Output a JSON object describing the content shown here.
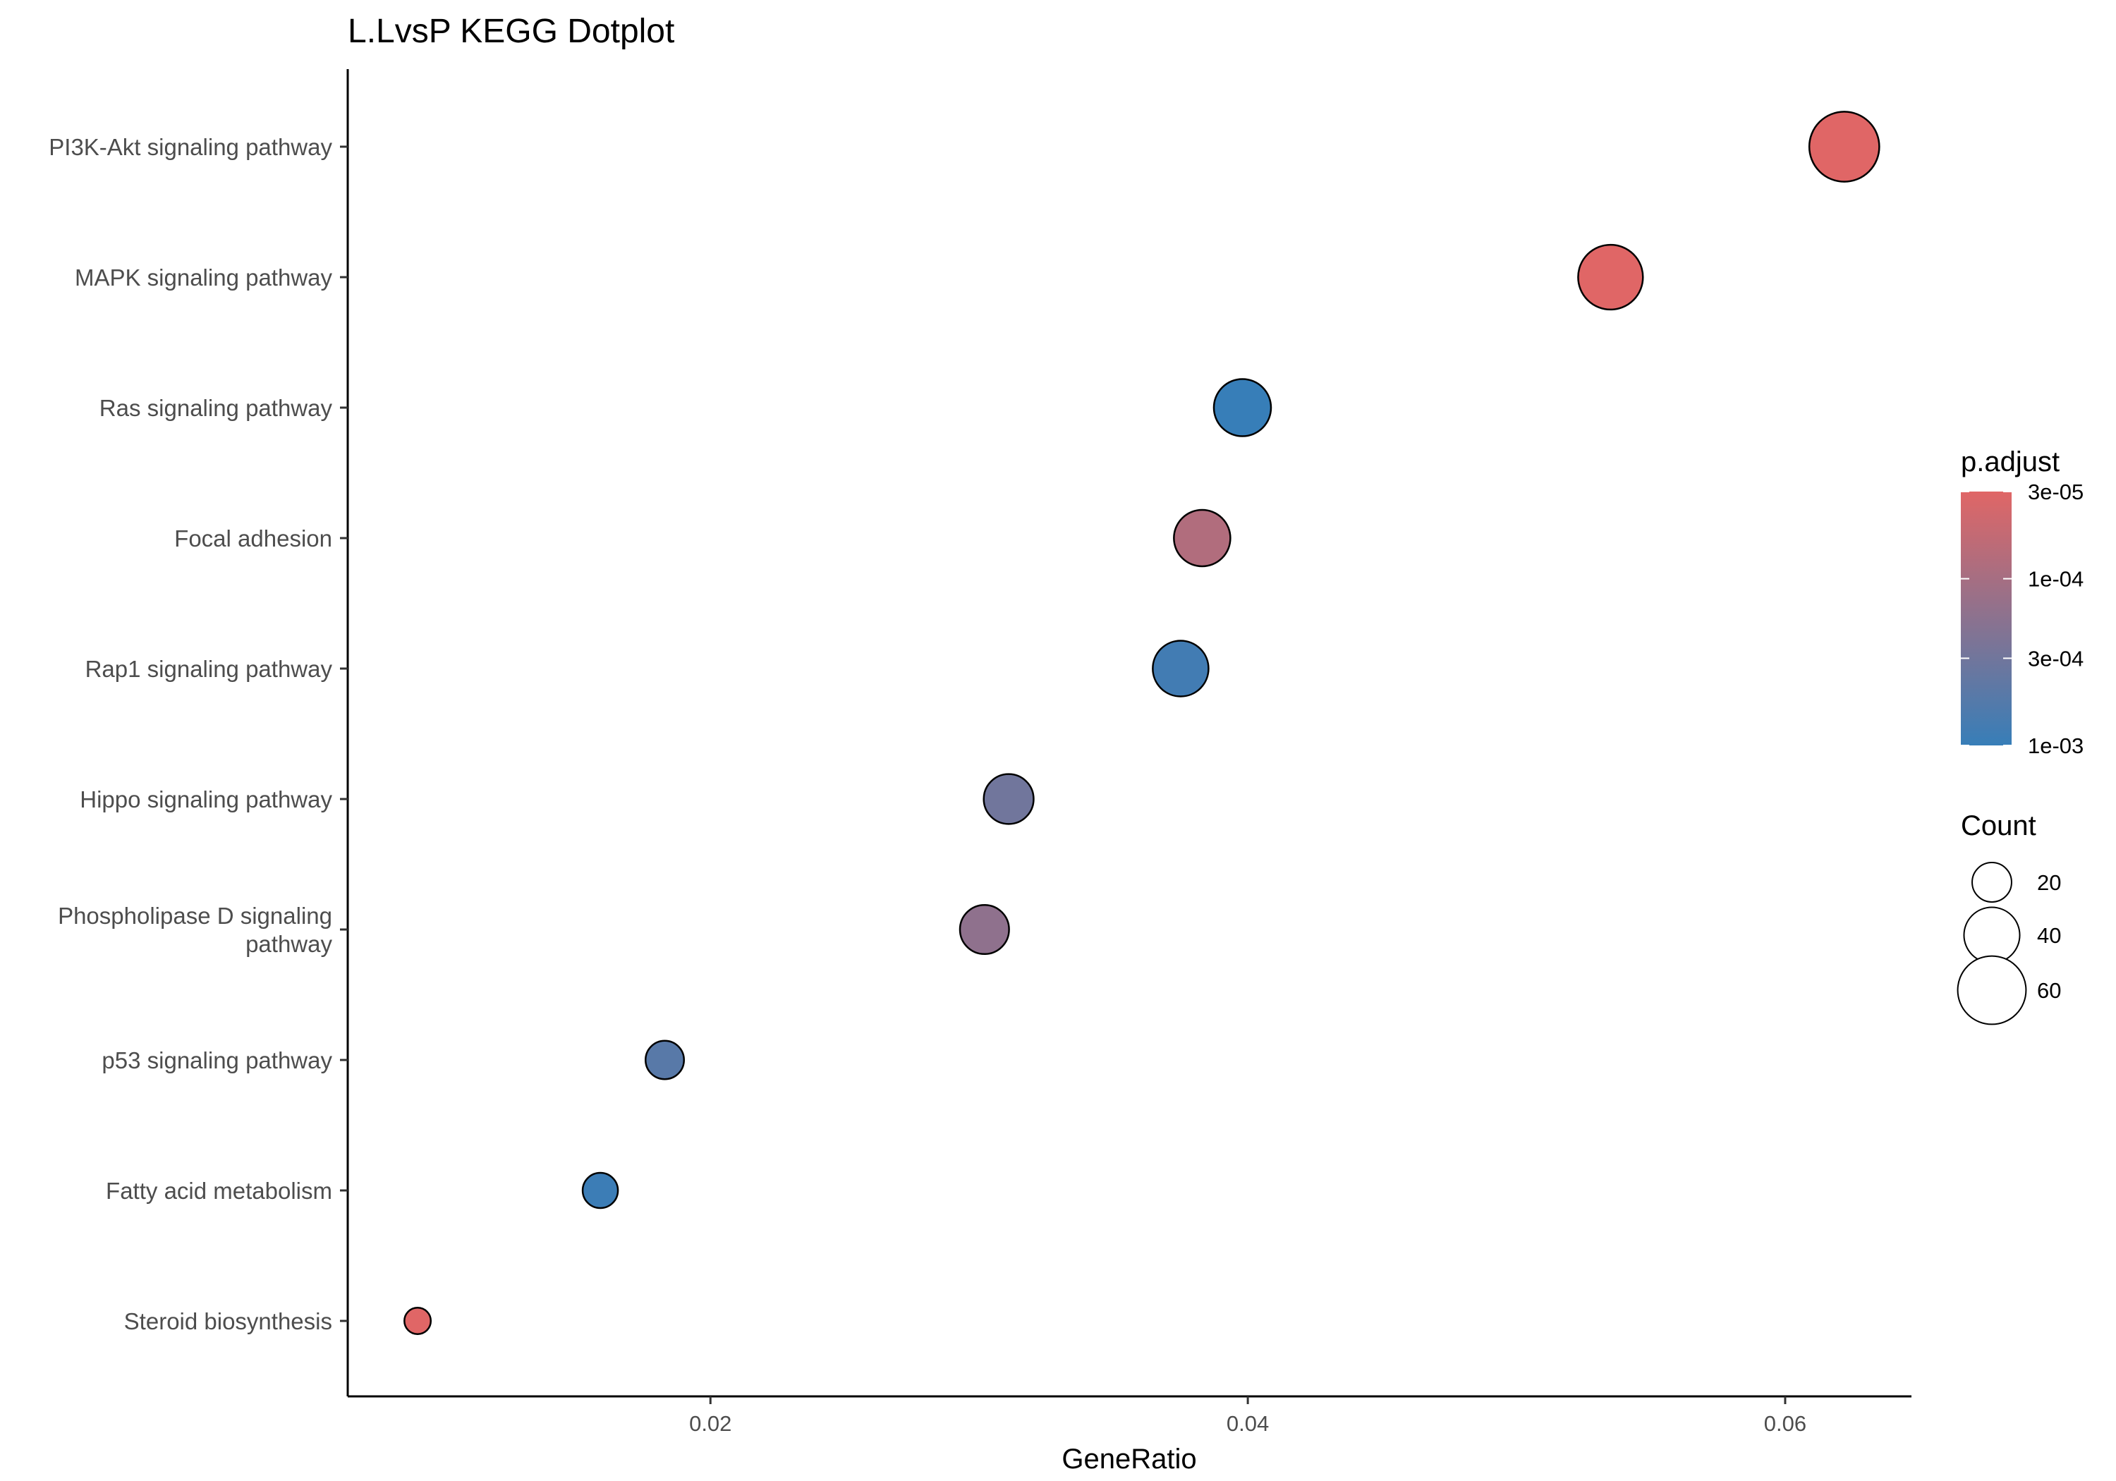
{
  "chart_data": {
    "type": "scatter",
    "title": "L.LvsP KEGG Dotplot",
    "xlabel": "GeneRatio",
    "ylabel": "",
    "xlim": [
      0.0065,
      0.0647
    ],
    "x_ticks": [
      {
        "value": 0.02,
        "label": "0.02"
      },
      {
        "value": 0.04,
        "label": "0.04"
      },
      {
        "value": 0.06,
        "label": "0.06"
      }
    ],
    "grid": false,
    "categories": [
      [
        "PI3K-Akt signaling pathway"
      ],
      [
        "MAPK signaling pathway"
      ],
      [
        "Ras signaling pathway"
      ],
      [
        "Focal adhesion"
      ],
      [
        "Rap1 signaling pathway"
      ],
      [
        "Hippo signaling pathway"
      ],
      [
        "Phospholipase D signaling",
        "pathway"
      ],
      [
        "p53 signaling pathway"
      ],
      [
        "Fatty acid metabolism"
      ],
      [
        "Steroid biosynthesis"
      ]
    ],
    "points": [
      {
        "gene_ratio": 0.0622,
        "count": 63,
        "p_adjust": 3e-05
      },
      {
        "gene_ratio": 0.0535,
        "count": 54,
        "p_adjust": 3e-05
      },
      {
        "gene_ratio": 0.0398,
        "count": 42,
        "p_adjust": 0.001
      },
      {
        "gene_ratio": 0.0383,
        "count": 41,
        "p_adjust": 8e-05
      },
      {
        "gene_ratio": 0.0375,
        "count": 40,
        "p_adjust": 0.0008
      },
      {
        "gene_ratio": 0.0311,
        "count": 32,
        "p_adjust": 0.0003
      },
      {
        "gene_ratio": 0.0302,
        "count": 31,
        "p_adjust": 0.00016
      },
      {
        "gene_ratio": 0.0183,
        "count": 19,
        "p_adjust": 0.0005
      },
      {
        "gene_ratio": 0.0159,
        "count": 16,
        "p_adjust": 0.0009
      },
      {
        "gene_ratio": 0.0091,
        "count": 9,
        "p_adjust": 3e-05
      }
    ],
    "color_legend": {
      "title": "p.adjust",
      "scale": "log",
      "low_value": 0.001,
      "high_value": 3e-05,
      "low_color": "#377eb8",
      "high_color": "#e06666",
      "ticks": [
        {
          "value": 3e-05,
          "label": "3e-05"
        },
        {
          "value": 0.0001,
          "label": "1e-04"
        },
        {
          "value": 0.0003,
          "label": "3e-04"
        },
        {
          "value": 0.001,
          "label": "1e-03"
        }
      ]
    },
    "size_legend": {
      "title": "Count",
      "entries": [
        {
          "value": 20,
          "label": "20"
        },
        {
          "value": 40,
          "label": "40"
        },
        {
          "value": 60,
          "label": "60"
        }
      ]
    },
    "legend_position": "right"
  }
}
